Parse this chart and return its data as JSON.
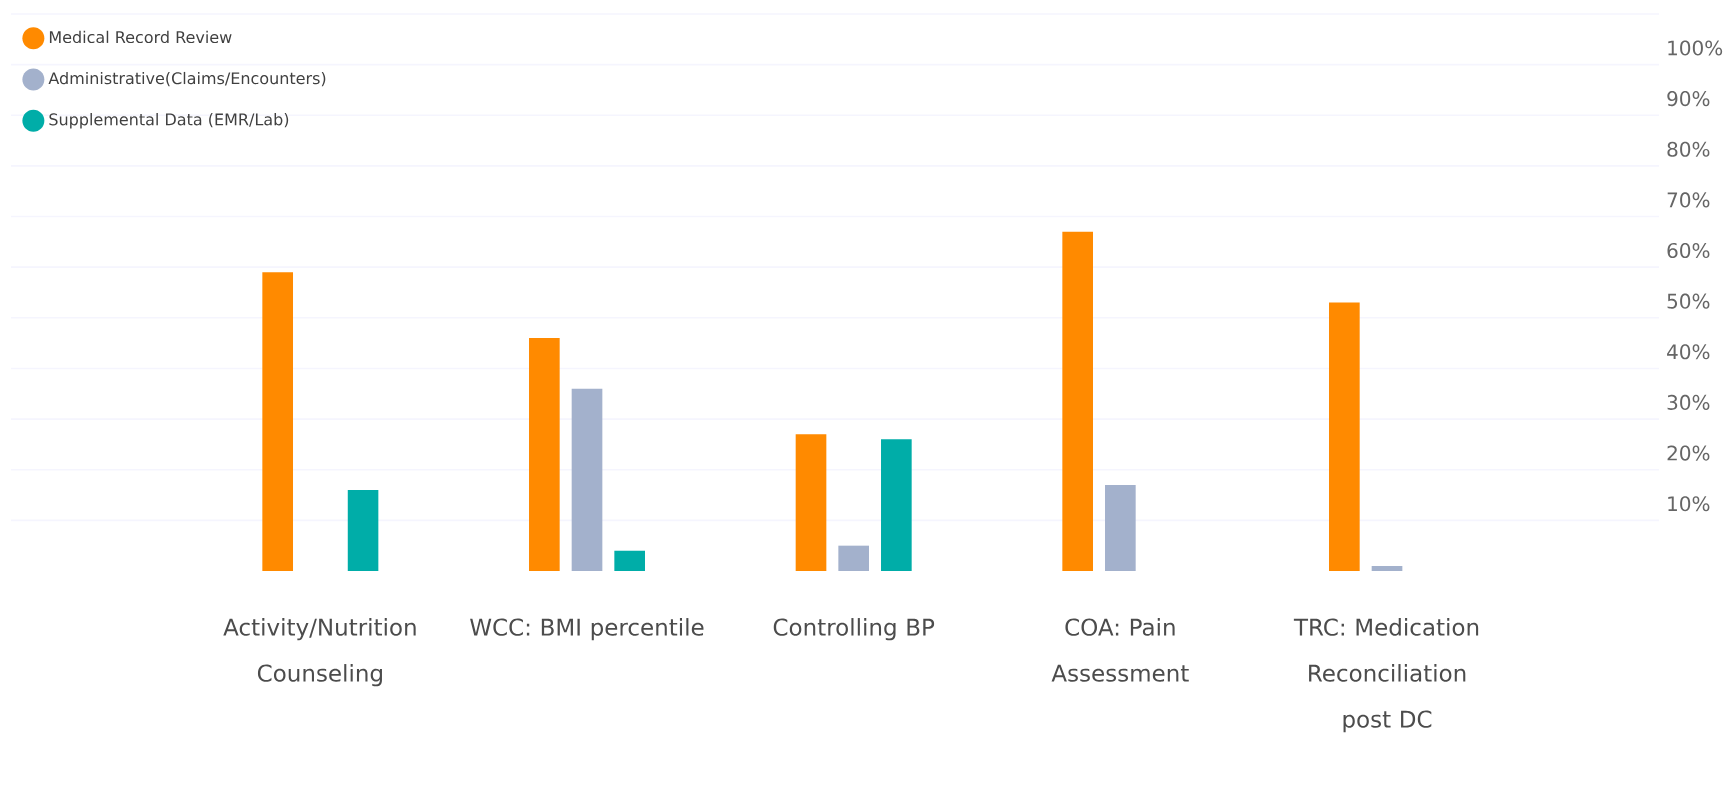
{
  "chart_data": {
    "type": "bar",
    "categories": [
      "Activity/Nutrition Counseling",
      "WCC: BMI percentile",
      "Controlling BP",
      "COA: Pain Assessment",
      "TRC: Medication Reconciliation post DC"
    ],
    "series": [
      {
        "name": "Medical Record Review",
        "color": "#ff8a00",
        "values": [
          59,
          46,
          27,
          67,
          53
        ]
      },
      {
        "name": "Administrative(Claims/Encounters)",
        "color": "#a3b1cc",
        "values": [
          null,
          36,
          5,
          17,
          1
        ]
      },
      {
        "name": "Supplemental Data (EMR/Lab)",
        "color": "#00ada8",
        "values": [
          16,
          4,
          26,
          null,
          null
        ]
      }
    ],
    "ylim": [
      0,
      110
    ],
    "yticks": [
      {
        "value": 10,
        "label": "10%"
      },
      {
        "value": 20,
        "label": "20%"
      },
      {
        "value": 30,
        "label": "30%"
      },
      {
        "value": 40,
        "label": "40%"
      },
      {
        "value": 50,
        "label": "50%"
      },
      {
        "value": 60,
        "label": "60%"
      },
      {
        "value": 70,
        "label": "70%"
      },
      {
        "value": 80,
        "label": "80%"
      },
      {
        "value": 90,
        "label": "90%"
      },
      {
        "value": 100,
        "label": "100%"
      },
      {
        "value": 110,
        "label": null
      }
    ],
    "grid": "y",
    "legend": "top left",
    "marker": "circle"
  }
}
